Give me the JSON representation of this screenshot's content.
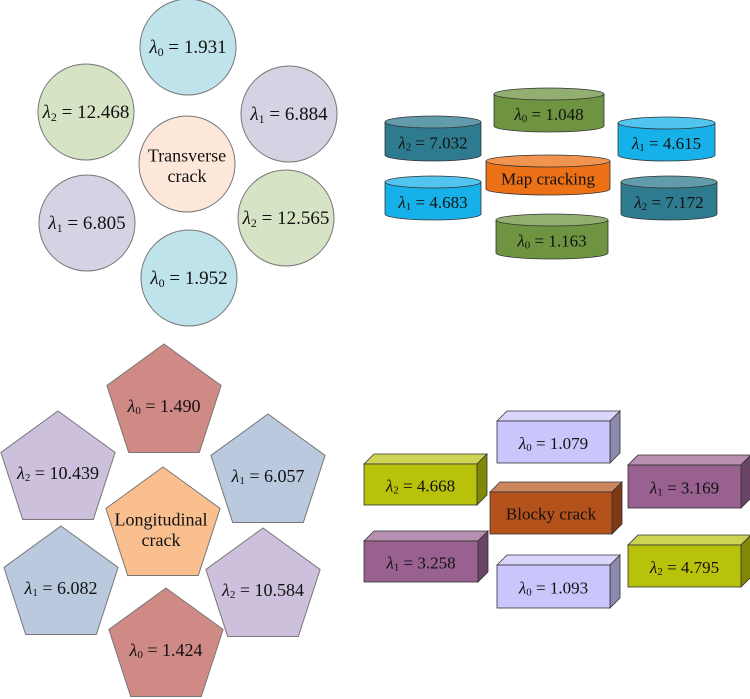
{
  "colors": {
    "circle_blue": "#bfe3ea",
    "circle_purple": "#d5d2e3",
    "circle_green": "#d6e3c4",
    "circle_center": "#fde7d8",
    "cyl_teal": "#2e7b8f",
    "cyl_green": "#6e9441",
    "cyl_blue": "#17b1ea",
    "cyl_orange": "#ec7016",
    "pent_red": "#d08a86",
    "pent_purple": "#ccc0dc",
    "pent_blue": "#bac9de",
    "pent_center": "#f9bf8f",
    "box_lavender": "#cac5fb",
    "box_yellow": "#b8c20a",
    "box_purple": "#98618f",
    "box_brown": "#b5521c"
  },
  "transverse": {
    "center": "Transverse crack",
    "items": [
      {
        "sym": "λ",
        "sub": "0",
        "value": "1.931",
        "color": "circle_blue"
      },
      {
        "sym": "λ",
        "sub": "1",
        "value": "6.884",
        "color": "circle_purple"
      },
      {
        "sym": "λ",
        "sub": "2",
        "value": "12.565",
        "color": "circle_green"
      },
      {
        "sym": "λ",
        "sub": "0",
        "value": "1.952",
        "color": "circle_blue"
      },
      {
        "sym": "λ",
        "sub": "1",
        "value": "6.805",
        "color": "circle_purple"
      },
      {
        "sym": "λ",
        "sub": "2",
        "value": "12.468",
        "color": "circle_green"
      }
    ]
  },
  "map": {
    "center": "Map cracking",
    "items": [
      {
        "sym": "λ",
        "sub": "0",
        "value": "1.048",
        "color": "cyl_green"
      },
      {
        "sym": "λ",
        "sub": "1",
        "value": "4.615",
        "color": "cyl_blue"
      },
      {
        "sym": "λ",
        "sub": "2",
        "value": "7.172",
        "color": "cyl_teal"
      },
      {
        "sym": "λ",
        "sub": "0",
        "value": "1.163",
        "color": "cyl_green"
      },
      {
        "sym": "λ",
        "sub": "1",
        "value": "4.683",
        "color": "cyl_blue"
      },
      {
        "sym": "λ",
        "sub": "2",
        "value": "7.032",
        "color": "cyl_teal"
      }
    ]
  },
  "longitudinal": {
    "center": "Longitudinal crack",
    "items": [
      {
        "sym": "λ",
        "sub": "0",
        "value": "1.490",
        "color": "pent_red"
      },
      {
        "sym": "λ",
        "sub": "1",
        "value": "6.057",
        "color": "pent_blue"
      },
      {
        "sym": "λ",
        "sub": "2",
        "value": "10.584",
        "color": "pent_purple"
      },
      {
        "sym": "λ",
        "sub": "0",
        "value": "1.424",
        "color": "pent_red"
      },
      {
        "sym": "λ",
        "sub": "1",
        "value": "6.082",
        "color": "pent_blue"
      },
      {
        "sym": "λ",
        "sub": "2",
        "value": "10.439",
        "color": "pent_purple"
      }
    ]
  },
  "blocky": {
    "center": "Blocky crack",
    "items": [
      {
        "sym": "λ",
        "sub": "0",
        "value": "1.079",
        "color": "box_lavender"
      },
      {
        "sym": "λ",
        "sub": "1",
        "value": "3.169",
        "color": "box_purple"
      },
      {
        "sym": "λ",
        "sub": "2",
        "value": "4.795",
        "color": "box_yellow"
      },
      {
        "sym": "λ",
        "sub": "0",
        "value": "1.093",
        "color": "box_lavender"
      },
      {
        "sym": "λ",
        "sub": "1",
        "value": "3.258",
        "color": "box_purple"
      },
      {
        "sym": "λ",
        "sub": "2",
        "value": "4.668",
        "color": "box_yellow"
      }
    ]
  }
}
